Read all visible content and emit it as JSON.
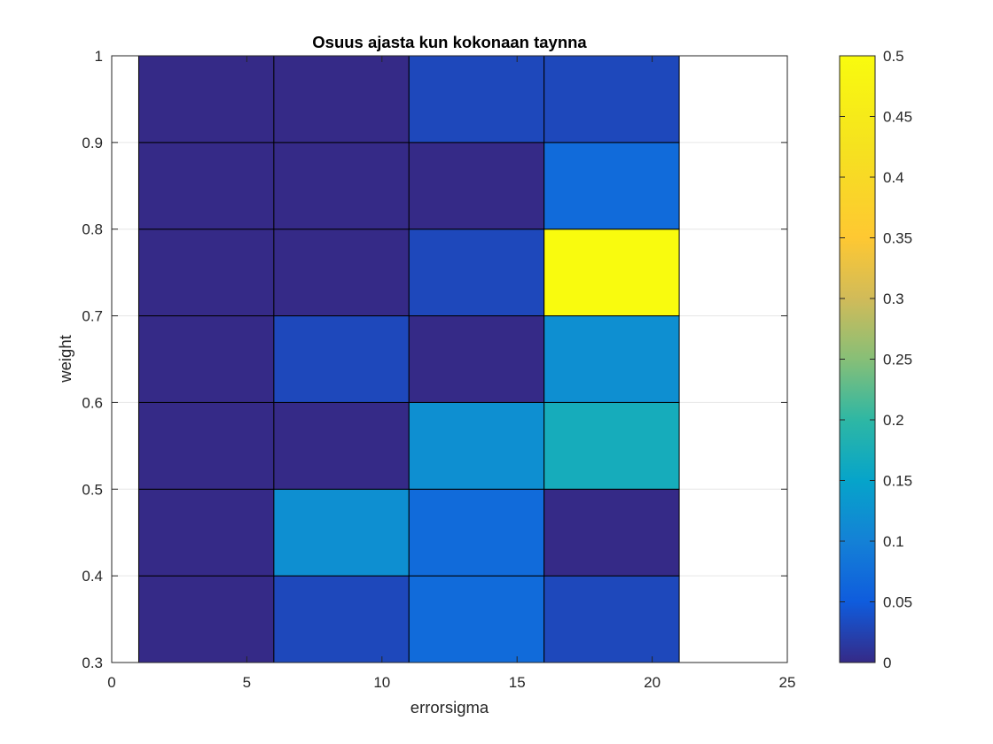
{
  "chart_data": {
    "type": "heatmap",
    "title": "Osuus ajasta kun kokonaan taynna",
    "xlabel": "errorsigma",
    "ylabel": "weight",
    "xlim": [
      0,
      25
    ],
    "ylim": [
      0.3,
      1
    ],
    "xticks": [
      "0",
      "5",
      "10",
      "15",
      "20",
      "25"
    ],
    "yticks": [
      "0.3",
      "0.4",
      "0.5",
      "0.6",
      "0.7",
      "0.8",
      "0.9",
      "1"
    ],
    "x_edges": [
      1,
      6,
      11,
      16,
      21
    ],
    "y_edges": [
      0.3,
      0.4,
      0.5,
      0.6,
      0.7,
      0.8,
      0.9,
      1.0
    ],
    "rows_bottom_to_top": [
      [
        0,
        0.03,
        0.07,
        0.03
      ],
      [
        0,
        0.12,
        0.07,
        0
      ],
      [
        0,
        0,
        0.12,
        0.17
      ],
      [
        0,
        0.03,
        0,
        0.12
      ],
      [
        0,
        0,
        0.03,
        0.5
      ],
      [
        0,
        0,
        0,
        0.07
      ],
      [
        0,
        0,
        0.03,
        0.03
      ]
    ],
    "colorbar": {
      "colormap": "parula",
      "clim": [
        0,
        0.5
      ],
      "ticks": [
        "0",
        "0.05",
        "0.1",
        "0.15",
        "0.2",
        "0.25",
        "0.3",
        "0.35",
        "0.4",
        "0.45",
        "0.5"
      ],
      "location": "right"
    },
    "grid": true
  }
}
